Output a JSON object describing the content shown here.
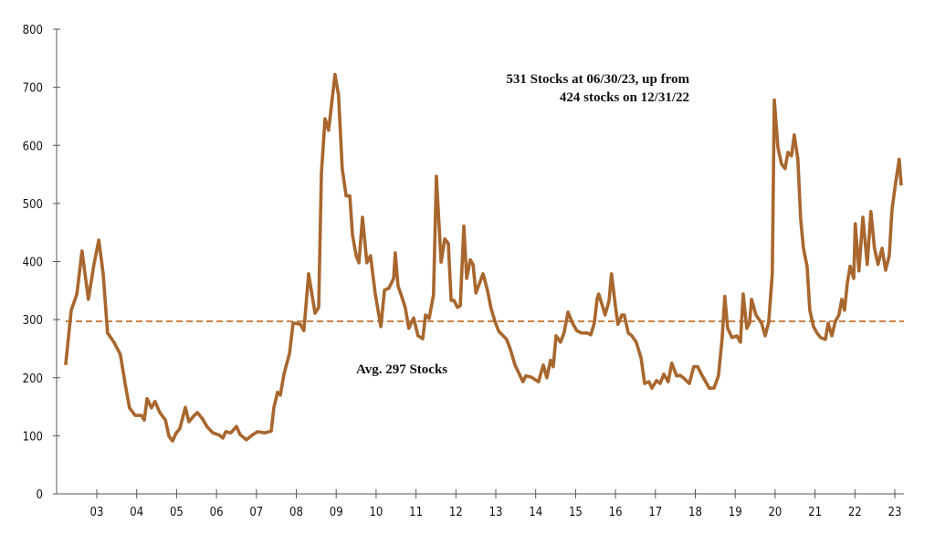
{
  "chart_data": {
    "type": "line",
    "title": "",
    "xlabel": "",
    "ylabel": "",
    "ylim": [
      0,
      800
    ],
    "yticks": [
      0,
      100,
      200,
      300,
      400,
      500,
      600,
      700,
      800
    ],
    "xticks": [
      "03",
      "04",
      "05",
      "06",
      "07",
      "08",
      "09",
      "10",
      "11",
      "12",
      "13",
      "14",
      "15",
      "16",
      "17",
      "18",
      "19",
      "20",
      "21",
      "22",
      "23"
    ],
    "grid": false,
    "colors": {
      "series": "#a8672e",
      "average": "#c0712f",
      "axis": "#555555"
    },
    "average": {
      "value": 297,
      "label": "Avg. 297  Stocks",
      "style": "dashed"
    },
    "annotation": {
      "line1": "531 Stocks at 06/30/23, up from",
      "line2": "424 stocks on 12/31/22"
    },
    "series": [
      {
        "x": [
          2002.22,
          2002.36,
          2002.5,
          2002.63,
          2002.79,
          2002.93,
          2003.05,
          2003.16,
          2003.27,
          2003.43,
          2003.59,
          2003.71,
          2003.82,
          2003.96,
          2004.12,
          2004.19,
          2004.26,
          2004.37,
          2004.46,
          2004.58,
          2004.72,
          2004.81,
          2004.9,
          2004.99,
          2005.08,
          2005.22,
          2005.31,
          2005.43,
          2005.52,
          2005.65,
          2005.77,
          2005.91,
          2006.07,
          2006.16,
          2006.23,
          2006.36,
          2006.5,
          2006.59,
          2006.75,
          2006.89,
          2007.03,
          2007.21,
          2007.37,
          2007.44,
          2007.53,
          2007.6,
          2007.69,
          2007.83,
          2007.92,
          2008.1,
          2008.19,
          2008.31,
          2008.47,
          2008.56,
          2008.63,
          2008.72,
          2008.81,
          2008.97,
          2009.06,
          2009.15,
          2009.25,
          2009.34,
          2009.41,
          2009.5,
          2009.57,
          2009.66,
          2009.77,
          2009.86,
          2009.98,
          2010.12,
          2010.21,
          2010.32,
          2010.44,
          2010.48,
          2010.55,
          2010.64,
          2010.73,
          2010.82,
          2010.94,
          2011.05,
          2011.17,
          2011.24,
          2011.33,
          2011.44,
          2011.51,
          2011.63,
          2011.72,
          2011.81,
          2011.88,
          2011.95,
          2012.04,
          2012.11,
          2012.2,
          2012.27,
          2012.36,
          2012.43,
          2012.5,
          2012.61,
          2012.68,
          2012.79,
          2012.88,
          2012.98,
          2013.07,
          2013.16,
          2013.27,
          2013.36,
          2013.48,
          2013.57,
          2013.68,
          2013.75,
          2013.89,
          2013.98,
          2014.07,
          2014.19,
          2014.28,
          2014.37,
          2014.44,
          2014.51,
          2014.62,
          2014.71,
          2014.81,
          2014.92,
          2015.03,
          2015.15,
          2015.29,
          2015.38,
          2015.47,
          2015.54,
          2015.58,
          2015.68,
          2015.74,
          2015.84,
          2015.9,
          2016.0,
          2016.06,
          2016.16,
          2016.22,
          2016.32,
          2016.41,
          2016.52,
          2016.64,
          2016.73,
          2016.84,
          2016.91,
          2017.03,
          2017.12,
          2017.21,
          2017.32,
          2017.41,
          2017.53,
          2017.62,
          2017.73,
          2017.85,
          2017.96,
          2018.06,
          2018.15,
          2018.26,
          2018.35,
          2018.47,
          2018.58,
          2018.67,
          2018.74,
          2018.81,
          2018.92,
          2019.04,
          2019.13,
          2019.2,
          2019.29,
          2019.36,
          2019.41,
          2019.52,
          2019.66,
          2019.75,
          2019.84,
          2019.93,
          2019.98,
          2020.07,
          2020.16,
          2020.25,
          2020.32,
          2020.41,
          2020.48,
          2020.57,
          2020.64,
          2020.71,
          2020.8,
          2020.87,
          2020.96,
          2021.05,
          2021.14,
          2021.26,
          2021.33,
          2021.42,
          2021.51,
          2021.6,
          2021.67,
          2021.74,
          2021.81,
          2021.88,
          2021.97,
          2022.01,
          2022.1,
          2022.2,
          2022.31,
          2022.4,
          2022.49,
          2022.58,
          2022.68,
          2022.77,
          2022.86,
          2022.93,
          2023.02,
          2023.11,
          2023.16
        ],
        "values": [
          222,
          316,
          344,
          418,
          335,
          395,
          437,
          379,
          277,
          261,
          240,
          190,
          148,
          135,
          135,
          127,
          164,
          148,
          159,
          140,
          127,
          99,
          91,
          105,
          112,
          149,
          124,
          134,
          140,
          129,
          115,
          105,
          101,
          96,
          107,
          105,
          116,
          102,
          93,
          101,
          107,
          105,
          108,
          149,
          175,
          170,
          206,
          242,
          294,
          292,
          281,
          379,
          311,
          321,
          552,
          646,
          626,
          722,
          686,
          560,
          513,
          513,
          445,
          410,
          398,
          476,
          398,
          410,
          344,
          288,
          351,
          354,
          371,
          415,
          358,
          340,
          321,
          285,
          303,
          272,
          267,
          308,
          302,
          343,
          547,
          399,
          439,
          431,
          333,
          333,
          321,
          324,
          461,
          371,
          403,
          395,
          346,
          366,
          379,
          351,
          319,
          297,
          280,
          274,
          266,
          250,
          222,
          209,
          193,
          203,
          201,
          197,
          193,
          222,
          200,
          230,
          219,
          272,
          261,
          277,
          313,
          294,
          281,
          277,
          277,
          274,
          294,
          336,
          344,
          322,
          308,
          333,
          379,
          322,
          292,
          308,
          308,
          277,
          272,
          261,
          234,
          190,
          193,
          182,
          195,
          190,
          206,
          193,
          225,
          203,
          204,
          198,
          190,
          219,
          219,
          206,
          193,
          182,
          182,
          203,
          266,
          340,
          285,
          269,
          272,
          261,
          344,
          285,
          294,
          335,
          308,
          294,
          272,
          296,
          379,
          678,
          596,
          568,
          560,
          588,
          582,
          618,
          576,
          473,
          423,
          392,
          316,
          288,
          277,
          269,
          266,
          294,
          272,
          297,
          308,
          335,
          316,
          363,
          392,
          371,
          465,
          384,
          476,
          395,
          486,
          423,
          395,
          423,
          385,
          410,
          489,
          536,
          576,
          531
        ]
      }
    ]
  }
}
